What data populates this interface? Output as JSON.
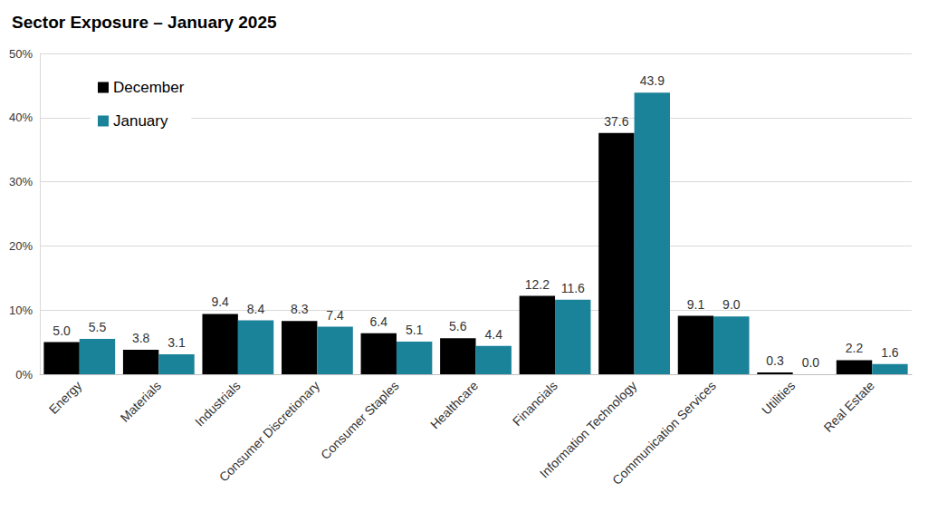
{
  "chart_data": {
    "type": "bar",
    "title": "Sector Exposure – January 2025",
    "categories": [
      "Energy",
      "Materials",
      "Industrials",
      "Consumer Discretionary",
      "Consumer Staples",
      "Healthcare",
      "Financials",
      "Information Technology",
      "Communication Services",
      "Utilities",
      "Real Estate"
    ],
    "series": [
      {
        "name": "December",
        "color": "#000000",
        "values": [
          5.0,
          3.8,
          9.4,
          8.3,
          6.4,
          5.6,
          12.2,
          37.6,
          9.1,
          0.3,
          2.2
        ],
        "value_labels": [
          "5.0",
          "3.8",
          "9.4",
          "8.3",
          "6.4",
          "5.6",
          "12.2",
          "37.6",
          "9.1",
          "0.3",
          "2.2"
        ]
      },
      {
        "name": "January",
        "color": "#1a8299",
        "values": [
          5.5,
          3.1,
          8.4,
          7.4,
          5.1,
          4.4,
          11.6,
          43.9,
          9.0,
          0.0,
          1.6
        ],
        "value_labels": [
          "5.5",
          "3.1",
          "8.4",
          "7.4",
          "5.1",
          "4.4",
          "11.6",
          "43.9",
          "9.0",
          "0.0",
          "1.6"
        ]
      }
    ],
    "ylim": [
      0,
      50
    ],
    "yticks": [
      {
        "value": 0,
        "label": "0%"
      },
      {
        "value": 10,
        "label": "10%"
      },
      {
        "value": 20,
        "label": "20%"
      },
      {
        "value": 30,
        "label": "30%"
      },
      {
        "value": 40,
        "label": "40%"
      },
      {
        "value": 50,
        "label": "50%"
      }
    ],
    "grid": true,
    "legend": "upper left",
    "data_labels": true
  }
}
